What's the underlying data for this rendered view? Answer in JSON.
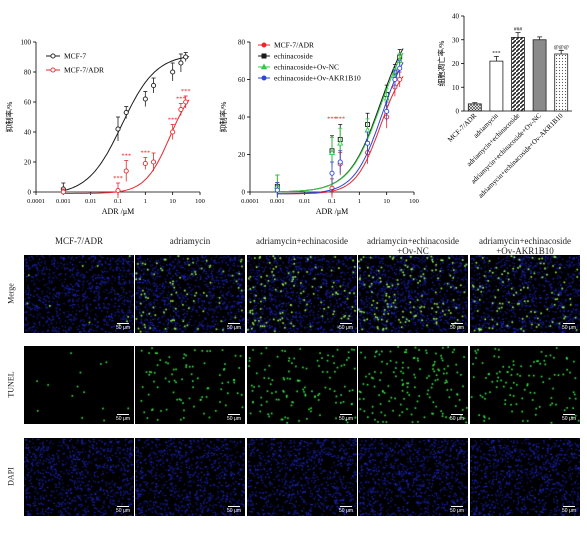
{
  "chart_data": [
    {
      "type": "scatter",
      "ylabel": "抑制率/%",
      "xlabel": "ADR /μM",
      "x_scale": "log",
      "xlim": [
        0.0001,
        100
      ],
      "ylim": [
        0,
        100
      ],
      "xticks": [
        "0.0001",
        "0.001",
        "0.01",
        "0.1",
        "1",
        "10",
        "100"
      ],
      "yticks": [
        "0",
        "20",
        "40",
        "60",
        "80",
        "100"
      ],
      "legend_position": "top-left",
      "series": [
        {
          "name": "MCF-7",
          "color": "#1a1a1a",
          "marker": "open-circle",
          "x": [
            0.001,
            0.1,
            0.2,
            1,
            2,
            10,
            20,
            30
          ],
          "y": [
            2,
            42,
            53,
            62,
            71,
            80,
            86,
            90
          ],
          "err": [
            4,
            8,
            4,
            5,
            5,
            6,
            6,
            3
          ]
        },
        {
          "name": "MCF-7/ADR",
          "color": "#e8262b",
          "marker": "open-circle",
          "x": [
            0.001,
            0.1,
            0.2,
            1,
            2,
            10,
            20,
            30
          ],
          "y": [
            0,
            1,
            14,
            19,
            20,
            40,
            55,
            60
          ],
          "err": [
            2,
            5,
            7,
            4,
            6,
            5,
            4,
            4
          ]
        }
      ],
      "annotations": [
        "***",
        "***",
        "***",
        "***",
        "***",
        "***"
      ]
    },
    {
      "type": "scatter",
      "ylabel": "抑制率/%",
      "xlabel": "ADR /μM",
      "x_scale": "log",
      "xlim": [
        0.0001,
        100
      ],
      "ylim": [
        0,
        80
      ],
      "xticks": [
        "0.0001",
        "0.001",
        "0.01",
        "0.1",
        "1",
        "10",
        "100"
      ],
      "yticks": [
        "0",
        "20",
        "40",
        "60",
        "80"
      ],
      "legend_position": "top-left",
      "series": [
        {
          "name": "MCF-7/ADR",
          "color": "#e8262b",
          "marker": "open-circle",
          "x": [
            0.001,
            0.1,
            0.2,
            2,
            10,
            20,
            30
          ],
          "y": [
            2,
            2,
            15,
            21,
            40,
            56,
            60
          ],
          "err": [
            3,
            5,
            6,
            6,
            6,
            5,
            4
          ]
        },
        {
          "name": "echinacoside",
          "color": "#1a1a1a",
          "marker": "open-square",
          "x": [
            0.001,
            0.1,
            0.2,
            2,
            10,
            20,
            30
          ],
          "y": [
            3,
            22,
            28,
            36,
            52,
            64,
            72
          ],
          "err": [
            6,
            8,
            8,
            6,
            5,
            4,
            4
          ]
        },
        {
          "name": "echinacoside+Ov-NC",
          "color": "#2ecc40",
          "marker": "open-triangle",
          "x": [
            0.001,
            0.1,
            0.2,
            2,
            10,
            20,
            30
          ],
          "y": [
            3,
            21,
            26,
            33,
            50,
            62,
            70
          ],
          "err": [
            6,
            8,
            8,
            6,
            5,
            4,
            4
          ]
        },
        {
          "name": "echinacoside+Ov-AKR1B10",
          "color": "#2b44d9",
          "marker": "open-circle",
          "x": [
            0.001,
            0.1,
            0.2,
            2,
            10,
            20,
            30
          ],
          "y": [
            1,
            10,
            16,
            26,
            43,
            60,
            66
          ],
          "err": [
            4,
            6,
            6,
            6,
            5,
            5,
            4
          ]
        }
      ],
      "annotations": [
        "***",
        "***"
      ]
    },
    {
      "type": "bar",
      "ylabel": "细胞凋亡率/%",
      "ylim": [
        0,
        40
      ],
      "yticks": [
        "0",
        "10",
        "20",
        "30",
        "40"
      ],
      "categories": [
        "MCF-7/ADR",
        "adriamycin",
        "adriamycin+echinacoside",
        "adriamycin+echinacoside+Ov-NC",
        "adriamycin+echinacoside+Ov-AKR1B10"
      ],
      "values": [
        3,
        21,
        31,
        30,
        24
      ],
      "errors": [
        0.5,
        2,
        2,
        1.2,
        1.5
      ],
      "annotations": [
        "",
        "***",
        "###",
        "",
        "@@@"
      ],
      "fills": [
        "crosshatch",
        "white",
        "diagonal",
        "gray",
        "dotted"
      ]
    }
  ],
  "image_grid": {
    "columns": [
      "MCF-7/ADR",
      "adriamycin",
      "adriamycin+echinacoside",
      "adriamycin+echinacoside\n+Ov-NC",
      "adriamycin+echinacoside\n+Ov-AKR1B10"
    ],
    "rows": [
      "Merge",
      "TUNEL",
      "DAPI"
    ],
    "scale_label": "50 μm"
  }
}
